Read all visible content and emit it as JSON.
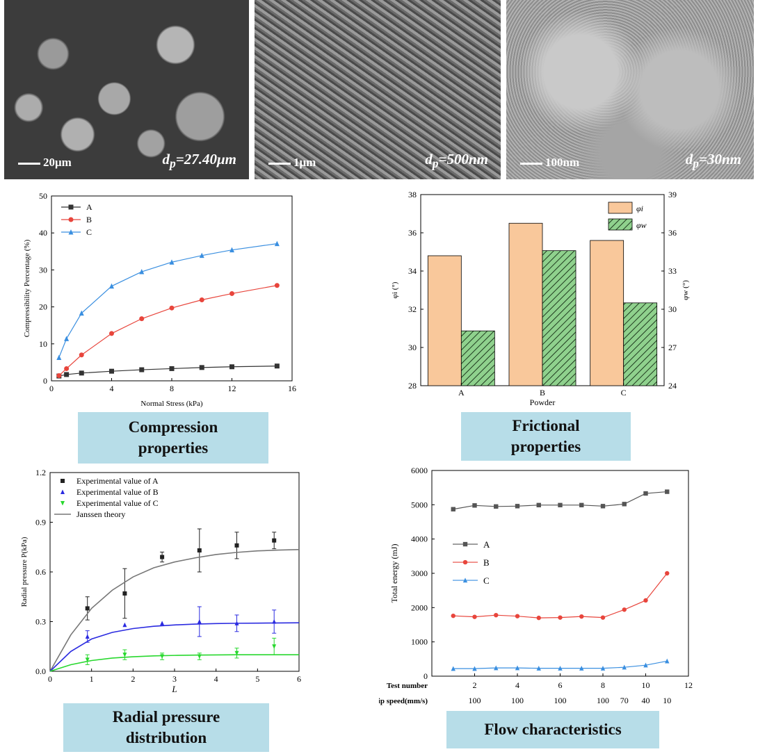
{
  "sem": [
    {
      "scale": "20μm",
      "dp_prefix": "d",
      "dp_sub": "p",
      "dp_value": "=27.40μm"
    },
    {
      "scale": "1μm",
      "dp_prefix": "d",
      "dp_sub": "p",
      "dp_value": "=500nm"
    },
    {
      "scale": "100nm",
      "dp_prefix": "d",
      "dp_sub": "p",
      "dp_value": "=30nm"
    }
  ],
  "captions": {
    "compression": "Compression properties",
    "frictional": "Frictional properties",
    "radial": "Radial pressure distribution",
    "flow": "Flow characteristics"
  },
  "chart_data": [
    {
      "type": "line",
      "xlabel": "Normal Stress (kPa)",
      "ylabel": "Compressibility Percentage (%)",
      "xlim": [
        0,
        16
      ],
      "ylim": [
        0,
        50
      ],
      "xticks": [
        0,
        4,
        8,
        12,
        16
      ],
      "yticks": [
        0,
        10,
        20,
        30,
        40,
        50
      ],
      "legend": "top-left",
      "series": [
        {
          "name": "A",
          "color": "#333333",
          "marker": "square",
          "x": [
            0.5,
            1,
            2,
            4,
            6,
            8,
            10,
            12,
            15
          ],
          "y": [
            1.3,
            1.7,
            2.1,
            2.6,
            3.0,
            3.3,
            3.6,
            3.8,
            4.0
          ]
        },
        {
          "name": "B",
          "color": "#e8453c",
          "marker": "circle",
          "x": [
            0.5,
            1,
            2,
            4,
            6,
            8,
            10,
            12,
            15
          ],
          "y": [
            1.4,
            3.3,
            7.0,
            12.8,
            16.8,
            19.7,
            21.9,
            23.6,
            25.8
          ]
        },
        {
          "name": "C",
          "color": "#3a8fe0",
          "marker": "triangle",
          "x": [
            0.5,
            1,
            2,
            4,
            6,
            8,
            10,
            12,
            15
          ],
          "y": [
            6.3,
            11.4,
            18.3,
            25.6,
            29.5,
            32.1,
            33.9,
            35.4,
            37.1
          ]
        }
      ]
    },
    {
      "type": "bar",
      "xlabel": "Powder",
      "ylabel_left": "φi (°)",
      "ylabel_right": "φw (°)",
      "categories": [
        "A",
        "B",
        "C"
      ],
      "ylim_left": [
        28,
        38
      ],
      "ylim_right": [
        24,
        39
      ],
      "yticks_left": [
        28,
        30,
        32,
        34,
        36,
        38
      ],
      "yticks_right": [
        24,
        27,
        30,
        33,
        36,
        39
      ],
      "legend": "top-right",
      "series": [
        {
          "name": "φi",
          "axis": "left",
          "color": "#f9c89b",
          "values": [
            34.8,
            36.5,
            35.6
          ]
        },
        {
          "name": "φw",
          "axis": "right",
          "color": "#8fd18d",
          "hatch": true,
          "values": [
            28.3,
            34.6,
            30.5
          ]
        }
      ]
    },
    {
      "type": "scatter",
      "xlabel": "L",
      "ylabel": "Radial pressure P(kPa)",
      "xlim": [
        0,
        6
      ],
      "ylim": [
        0,
        1.2
      ],
      "xticks": [
        0,
        1,
        2,
        3,
        4,
        5,
        6
      ],
      "yticks": [
        0.0,
        0.3,
        0.6,
        0.9,
        1.2
      ],
      "legend": "top-left",
      "series": [
        {
          "name": "Experimental value of A",
          "color": "#222222",
          "marker": "square",
          "x": [
            0.9,
            1.8,
            2.7,
            3.6,
            4.5,
            5.4
          ],
          "y": [
            0.38,
            0.47,
            0.69,
            0.73,
            0.76,
            0.79
          ],
          "err": [
            0.07,
            0.15,
            0.03,
            0.13,
            0.08,
            0.05
          ]
        },
        {
          "name": "Experimental value of B",
          "color": "#2a2ae0",
          "marker": "triangle",
          "x": [
            0.9,
            1.8,
            2.7,
            3.6,
            4.5,
            5.4
          ],
          "y": [
            0.21,
            0.28,
            0.29,
            0.3,
            0.29,
            0.3
          ],
          "err": [
            0.035,
            0.0,
            0.0,
            0.09,
            0.05,
            0.07
          ]
        },
        {
          "name": "Experimental value of C",
          "color": "#28d82e",
          "marker": "triangle-down",
          "x": [
            0.9,
            1.8,
            2.7,
            3.6,
            4.5,
            5.4
          ],
          "y": [
            0.07,
            0.1,
            0.09,
            0.09,
            0.11,
            0.15
          ],
          "err": [
            0.03,
            0.03,
            0.02,
            0.02,
            0.03,
            0.05
          ]
        },
        {
          "name": "Janssen theory",
          "type": "curve",
          "color": "#777777",
          "x": [
            0,
            0.5,
            1,
            1.5,
            2,
            2.5,
            3,
            3.5,
            4,
            4.5,
            5,
            5.5,
            6
          ],
          "y": [
            0,
            0.22,
            0.38,
            0.49,
            0.57,
            0.625,
            0.66,
            0.685,
            0.705,
            0.718,
            0.727,
            0.732,
            0.735
          ]
        },
        {
          "name": "",
          "type": "curve",
          "color": "#2a2ae0",
          "x": [
            0,
            0.5,
            1,
            1.5,
            2,
            2.5,
            3,
            3.5,
            4,
            4.5,
            5,
            5.5,
            6
          ],
          "y": [
            0,
            0.12,
            0.195,
            0.235,
            0.258,
            0.272,
            0.28,
            0.285,
            0.288,
            0.29,
            0.291,
            0.292,
            0.293
          ]
        },
        {
          "name": "",
          "type": "curve",
          "color": "#28d82e",
          "x": [
            0,
            0.5,
            1,
            1.5,
            2,
            2.5,
            3,
            3.5,
            4,
            4.5,
            5,
            5.5,
            6
          ],
          "y": [
            0,
            0.04,
            0.065,
            0.08,
            0.088,
            0.093,
            0.096,
            0.098,
            0.099,
            0.1,
            0.1,
            0.1,
            0.1
          ]
        }
      ]
    },
    {
      "type": "line",
      "ylabel": "Total energy (mJ)",
      "xlim": [
        0,
        12
      ],
      "ylim": [
        0,
        6000
      ],
      "xticks": [
        0,
        2,
        4,
        6,
        8,
        10,
        12
      ],
      "yticks": [
        0,
        1000,
        2000,
        3000,
        4000,
        5000,
        6000
      ],
      "row_label_1": "Test number",
      "row_label_2": "Tip speed(mm/s)",
      "tip_speed": [
        {
          "x": 2,
          "label": "100"
        },
        {
          "x": 4,
          "label": "100"
        },
        {
          "x": 6,
          "label": "100"
        },
        {
          "x": 8,
          "label": "100"
        },
        {
          "x": 9,
          "label": "70"
        },
        {
          "x": 10,
          "label": "40"
        },
        {
          "x": 11,
          "label": "10"
        }
      ],
      "legend": "left",
      "series": [
        {
          "name": "A",
          "color": "#555555",
          "marker": "square",
          "x": [
            1,
            2,
            3,
            4,
            5,
            6,
            7,
            8,
            9,
            10,
            11
          ],
          "y": [
            4870,
            4980,
            4950,
            4960,
            4990,
            4990,
            4990,
            4960,
            5020,
            5330,
            5380
          ]
        },
        {
          "name": "B",
          "color": "#e8453c",
          "marker": "circle",
          "x": [
            1,
            2,
            3,
            4,
            5,
            6,
            7,
            8,
            9,
            10,
            11
          ],
          "y": [
            1760,
            1730,
            1780,
            1750,
            1700,
            1710,
            1740,
            1710,
            1940,
            2210,
            3000
          ]
        },
        {
          "name": "C",
          "color": "#3a8fe0",
          "marker": "triangle",
          "x": [
            1,
            2,
            3,
            4,
            5,
            6,
            7,
            8,
            9,
            10,
            11
          ],
          "y": [
            220,
            220,
            240,
            240,
            230,
            230,
            230,
            230,
            260,
            320,
            440
          ]
        }
      ]
    }
  ]
}
